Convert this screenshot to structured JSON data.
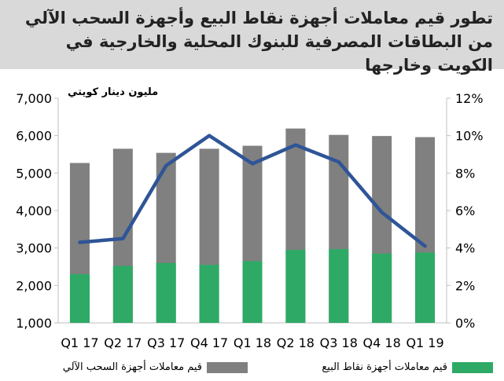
{
  "title": "تطور قيم معاملات أجهزة نقاط البيع وأجهزة السحب الآلي من البطاقات المصرفية للبنوك المحلية والخارجية في الكويت وخارجها",
  "colors": {
    "header_bg": "#d9d9d9",
    "gray": "#808080",
    "green": "#2eaa66",
    "line": "#2f5597"
  },
  "chart_data": {
    "type": "bar",
    "stacked": true,
    "title": "تطور قيم معاملات أجهزة نقاط البيع وأجهزة السحب الآلي من البطاقات المصرفية للبنوك المحلية والخارجية في الكويت وخارجها",
    "unit_label": "مليون دينار كويتي",
    "categories": [
      "Q1 17",
      "Q2 17",
      "Q3 17",
      "Q4 17",
      "Q1 18",
      "Q2 18",
      "Q3 18",
      "Q4 18",
      "Q1 19"
    ],
    "series": [
      {
        "name": "قيم معاملات أجهزة نقاط البيع",
        "type": "bar",
        "color": "#2eaa66",
        "values": [
          2300,
          2520,
          2600,
          2550,
          2650,
          2950,
          2970,
          2850,
          2880
        ]
      },
      {
        "name": "قيم معاملات أجهزة السحب الآلي",
        "type": "bar",
        "color": "#808080",
        "values": [
          5270,
          5650,
          5540,
          5650,
          5730,
          6190,
          6020,
          5990,
          5960
        ]
      },
      {
        "axis": "right",
        "type": "line",
        "color": "#2f5597",
        "values": [
          4.3,
          4.5,
          8.4,
          10.0,
          8.5,
          9.5,
          8.6,
          5.9,
          4.1
        ]
      }
    ],
    "y_left": {
      "min": 1000,
      "max": 7000,
      "step": 1000,
      "tick_labels": [
        "1,000",
        "2,000",
        "3,000",
        "4,000",
        "5,000",
        "6,000",
        "7,000"
      ]
    },
    "y_right": {
      "min": 0,
      "max": 12,
      "step": 2,
      "tick_labels": [
        "0%",
        "2%",
        "4%",
        "6%",
        "8%",
        "10%",
        "12%"
      ]
    },
    "grid": false,
    "legend_position": "bottom"
  }
}
